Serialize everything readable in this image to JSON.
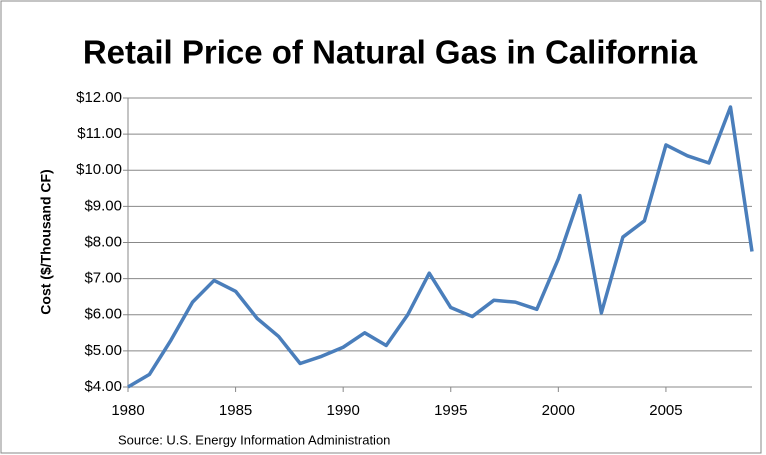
{
  "chart_data": {
    "type": "line",
    "title": "Retail Price of Natural Gas in California",
    "y_label": "Cost ($/Thousand CF)",
    "annotation": "Source: U.S. Energy Information Administration",
    "x": [
      1980,
      1981,
      1982,
      1983,
      1984,
      1985,
      1986,
      1987,
      1988,
      1989,
      1990,
      1991,
      1992,
      1993,
      1994,
      1995,
      1996,
      1997,
      1998,
      1999,
      2000,
      2001,
      2002,
      2003,
      2004,
      2005,
      2006,
      2007,
      2008,
      2009
    ],
    "series": [
      {
        "name": "Retail Price",
        "color": "#4a7ebb",
        "values": [
          4.0,
          4.35,
          5.3,
          6.35,
          6.95,
          6.65,
          5.9,
          5.4,
          4.65,
          4.85,
          5.1,
          5.5,
          5.15,
          6.0,
          7.15,
          6.2,
          5.95,
          6.4,
          6.35,
          6.15,
          7.55,
          9.3,
          6.05,
          8.15,
          8.6,
          10.7,
          10.4,
          10.2,
          11.75,
          7.75
        ]
      }
    ],
    "xlim": [
      1980,
      2009
    ],
    "xticks": [
      1980,
      1985,
      1990,
      1995,
      2000,
      2005
    ],
    "ylim": [
      4,
      12
    ],
    "yticks": [
      {
        "value": 4,
        "label": "$4.00"
      },
      {
        "value": 5,
        "label": "$5.00"
      },
      {
        "value": 6,
        "label": "$6.00"
      },
      {
        "value": 7,
        "label": "$7.00"
      },
      {
        "value": 8,
        "label": "$8.00"
      },
      {
        "value": 9,
        "label": "$9.00"
      },
      {
        "value": 10,
        "label": "$10.00"
      },
      {
        "value": 11,
        "label": "$11.00"
      },
      {
        "value": 12,
        "label": "$12.00"
      }
    ],
    "grid": true
  }
}
